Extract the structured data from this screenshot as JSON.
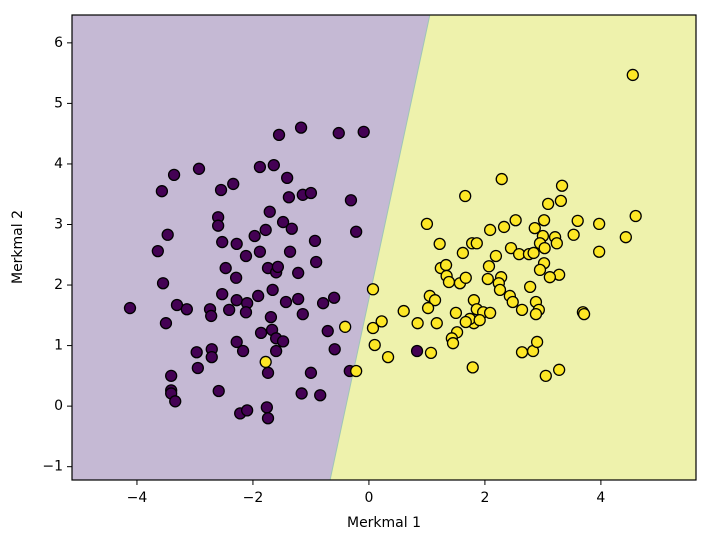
{
  "chart_data": {
    "type": "scatter",
    "xlabel": "Merkmal 1",
    "ylabel": "Merkmal 2",
    "xlim": [
      -5.12,
      5.64
    ],
    "ylim": [
      -1.22,
      6.46
    ],
    "xticks": [
      {
        "value": -4,
        "label": "−4"
      },
      {
        "value": -2,
        "label": "−2"
      },
      0,
      2,
      4
    ],
    "yticks": [
      {
        "value": -1,
        "label": "−1"
      },
      0,
      1,
      2,
      3,
      4,
      5,
      6
    ],
    "boundary": {
      "x": [
        -0.67,
        1.05
      ],
      "y": [
        -1.22,
        6.46
      ]
    },
    "series": [
      {
        "color": "#440154",
        "region_color": "#c5b9d4",
        "x": [
          -4.12,
          -1.55,
          -1.17,
          -0.52,
          -0.09,
          -3.57,
          -3.36,
          -2.93,
          -2.34,
          -2.55,
          -1.88,
          -1.64,
          -1.41,
          -1.38,
          -1.14,
          -1.0,
          -1.71,
          -1.48,
          -1.33,
          -1.97,
          -2.6,
          -2.6,
          -2.28,
          -2.53,
          -1.78,
          -3.47,
          -3.64,
          -2.12,
          -1.88,
          -1.36,
          -0.93,
          -0.31,
          -0.22,
          -2.47,
          -2.29,
          -3.55,
          -1.74,
          -1.6,
          -1.57,
          -1.22,
          -0.91,
          -2.53,
          -2.28,
          -2.1,
          -1.91,
          -1.66,
          -1.43,
          -1.22,
          -0.79,
          -0.6,
          -3.31,
          -3.14,
          -2.74,
          -2.72,
          -2.41,
          -2.12,
          -1.69,
          -1.14,
          -3.5,
          -1.86,
          -1.67,
          -1.6,
          -1.48,
          -0.71,
          -2.28,
          -2.17,
          -2.71,
          -2.71,
          -2.97,
          -1.6,
          -0.59,
          -2.95,
          -1.74,
          -1.0,
          -3.41,
          -3.41,
          -3.41,
          -3.34,
          -2.59,
          -1.16,
          -0.84,
          -2.22,
          -2.1,
          -1.76,
          -1.74,
          0.83,
          -0.33
        ],
        "y": [
          1.62,
          4.48,
          4.6,
          4.51,
          4.53,
          3.55,
          3.82,
          3.92,
          3.67,
          3.57,
          3.95,
          3.98,
          3.77,
          3.45,
          3.49,
          3.52,
          3.21,
          3.04,
          2.93,
          2.81,
          3.12,
          2.98,
          2.68,
          2.71,
          2.91,
          2.83,
          2.56,
          2.48,
          2.55,
          2.55,
          2.73,
          3.4,
          2.88,
          2.28,
          2.12,
          2.03,
          2.28,
          2.21,
          2.3,
          2.2,
          2.38,
          1.85,
          1.75,
          1.7,
          1.82,
          1.92,
          1.72,
          1.77,
          1.7,
          1.79,
          1.67,
          1.6,
          1.6,
          1.49,
          1.59,
          1.55,
          1.47,
          1.52,
          1.37,
          1.21,
          1.26,
          1.12,
          1.07,
          1.24,
          1.06,
          0.91,
          0.94,
          0.81,
          0.89,
          0.91,
          0.94,
          0.63,
          0.55,
          0.55,
          0.5,
          0.26,
          0.21,
          0.08,
          0.25,
          0.21,
          0.18,
          -0.12,
          -0.07,
          -0.02,
          -0.2,
          0.91,
          0.58
        ]
      },
      {
        "color": "#fde725",
        "region_color": "#eef2ac",
        "x": [
          4.55,
          1.66,
          2.29,
          3.33,
          3.09,
          3.31,
          1.0,
          1.22,
          1.62,
          1.78,
          1.86,
          2.09,
          2.33,
          2.53,
          3.02,
          3.6,
          3.97,
          4.6,
          2.86,
          3.0,
          3.21,
          3.53,
          2.95,
          3.03,
          3.24,
          4.43,
          3.97,
          2.45,
          2.59,
          2.76,
          2.84,
          3.02,
          2.95,
          3.28,
          3.12,
          2.07,
          2.19,
          1.24,
          1.33,
          1.34,
          1.38,
          1.57,
          1.67,
          2.05,
          2.28,
          2.24,
          2.78,
          2.26,
          2.43,
          2.48,
          2.64,
          2.88,
          2.93,
          2.88,
          3.69,
          3.71,
          0.07,
          1.05,
          1.14,
          1.02,
          0.6,
          1.5,
          1.81,
          1.86,
          1.97,
          2.09,
          1.81,
          1.74,
          1.67,
          1.52,
          1.91,
          1.17,
          0.84,
          0.22,
          0.07,
          -0.41,
          1.43,
          1.45,
          0.1,
          0.33,
          1.07,
          2.64,
          2.83,
          2.9,
          1.79,
          3.05,
          3.28,
          -1.78,
          -0.22
        ],
        "y": [
          5.47,
          3.47,
          3.75,
          3.64,
          3.34,
          3.39,
          3.01,
          2.68,
          2.53,
          2.69,
          2.69,
          2.91,
          2.96,
          3.07,
          3.07,
          3.06,
          3.01,
          3.14,
          2.94,
          2.81,
          2.79,
          2.83,
          2.69,
          2.61,
          2.69,
          2.79,
          2.55,
          2.61,
          2.51,
          2.51,
          2.53,
          2.36,
          2.25,
          2.17,
          2.13,
          2.31,
          2.48,
          2.28,
          2.33,
          2.15,
          2.05,
          2.03,
          2.12,
          2.1,
          2.13,
          2.03,
          1.97,
          1.92,
          1.82,
          1.72,
          1.59,
          1.72,
          1.59,
          1.52,
          1.55,
          1.52,
          1.93,
          1.82,
          1.75,
          1.62,
          1.57,
          1.54,
          1.75,
          1.6,
          1.55,
          1.54,
          1.37,
          1.44,
          1.39,
          1.22,
          1.42,
          1.37,
          1.37,
          1.4,
          1.29,
          1.31,
          1.12,
          1.04,
          1.01,
          0.81,
          0.88,
          0.89,
          0.91,
          1.06,
          0.64,
          0.5,
          0.6,
          0.73,
          0.58
        ]
      }
    ]
  }
}
